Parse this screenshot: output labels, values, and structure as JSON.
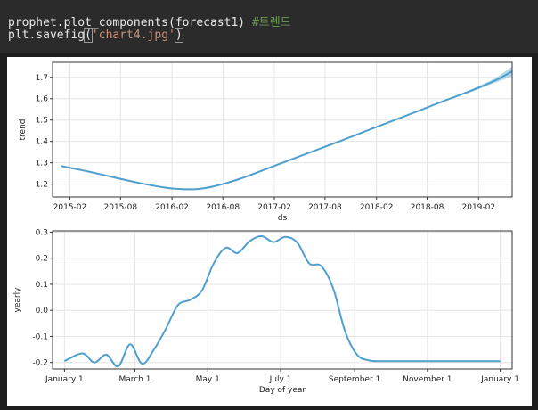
{
  "code": {
    "line1_code": "prophet.plot_components(forecast1) ",
    "line1_comment": "#트렌드",
    "line2_prefix": "plt.savefig",
    "line2_open": "(",
    "line2_string": "'chart4.jpg'",
    "line2_close": ")"
  },
  "colors": {
    "line": "#4f9fcf",
    "band": "#9ecae1",
    "background": "#1e1e1e",
    "code_bg": "#2b2b2b"
  },
  "chart_data": [
    {
      "type": "line",
      "title": "",
      "xlabel": "ds",
      "ylabel": "trend",
      "xtick_labels": [
        "2015-02",
        "2015-08",
        "2016-02",
        "2016-08",
        "2017-02",
        "2017-08",
        "2018-02",
        "2018-08",
        "2019-02"
      ],
      "ytick_labels": [
        "1.2",
        "1.3",
        "1.4",
        "1.5",
        "1.6",
        "1.7"
      ],
      "xlim": [
        "2014-12-01",
        "2019-06-01"
      ],
      "ylim": [
        1.14,
        1.77
      ],
      "grid": true,
      "series": [
        {
          "x": [
            "2015-01-01",
            "2015-04-01",
            "2015-07-01",
            "2015-10-01",
            "2016-01-01",
            "2016-03-01",
            "2016-05-01",
            "2016-07-01",
            "2016-10-01",
            "2017-01-01",
            "2017-04-01",
            "2017-07-01",
            "2017-10-01",
            "2018-01-01",
            "2018-04-01",
            "2018-07-01",
            "2018-10-01",
            "2019-01-01",
            "2019-04-01"
          ],
          "y": [
            1.285,
            1.261,
            1.234,
            1.207,
            1.185,
            1.177,
            1.177,
            1.19,
            1.225,
            1.27,
            1.315,
            1.36,
            1.405,
            1.452,
            1.497,
            1.543,
            1.59,
            1.635,
            1.685
          ]
        }
      ],
      "forecast": {
        "x": [
          "2019-04-01",
          "2019-06-01"
        ],
        "y": [
          1.685,
          1.728
        ],
        "lower": [
          1.675,
          1.705
        ],
        "upper": [
          1.695,
          1.75
        ]
      },
      "band_start": "2018-09-01"
    },
    {
      "type": "line",
      "title": "",
      "xlabel": "Day of year",
      "ylabel": "yearly",
      "xtick_labels": [
        "January 1",
        "March 1",
        "May 1",
        "July 1",
        "September 1",
        "November 1",
        "January 1"
      ],
      "xtick_values": [
        0,
        59,
        120,
        181,
        243,
        304,
        365
      ],
      "ytick_labels": [
        "-0.2",
        "-0.1",
        "0.0",
        "0.1",
        "0.2",
        "0.3"
      ],
      "ytick_values": [
        -0.2,
        -0.1,
        0.0,
        0.1,
        0.2,
        0.3
      ],
      "xlim": [
        -10,
        375
      ],
      "ylim": [
        -0.225,
        0.305
      ],
      "grid": true,
      "series": [
        {
          "x": [
            0,
            15,
            25,
            35,
            45,
            55,
            65,
            75,
            85,
            95,
            105,
            115,
            125,
            135,
            145,
            155,
            165,
            175,
            185,
            195,
            205,
            215,
            225,
            235,
            245,
            255,
            265,
            275,
            285,
            295,
            305,
            315,
            325,
            335,
            345,
            355,
            365
          ],
          "y": [
            -0.195,
            -0.165,
            -0.2,
            -0.17,
            -0.215,
            -0.13,
            -0.205,
            -0.15,
            -0.07,
            0.02,
            0.04,
            0.075,
            0.18,
            0.24,
            0.22,
            0.265,
            0.285,
            0.262,
            0.282,
            0.26,
            0.18,
            0.17,
            0.085,
            -0.08,
            -0.17,
            -0.192,
            -0.195,
            -0.195,
            -0.195,
            -0.195,
            -0.195,
            -0.195,
            -0.195,
            -0.195,
            -0.195,
            -0.195,
            -0.195
          ]
        }
      ]
    }
  ]
}
